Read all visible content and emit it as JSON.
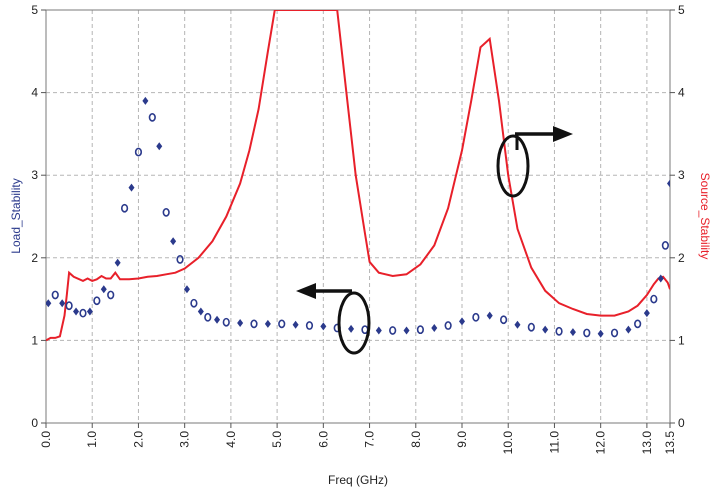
{
  "chart_data": {
    "type": "scatter",
    "xlabel": "Freq (GHz)",
    "ylabel_left": "Load_Stability",
    "ylabel_right": "Source_Stability",
    "xlim": [
      0,
      13.5
    ],
    "ylim_left": [
      0,
      5
    ],
    "ylim_right": [
      0,
      5
    ],
    "x_ticks": [
      "0.0",
      "1.0",
      "2.0",
      "3.0",
      "4.0",
      "5.0",
      "6.0",
      "7.0",
      "8.0",
      "9.0",
      "10.0",
      "11.0",
      "12.0",
      "13.0",
      "13.5"
    ],
    "y_ticks_left": [
      "0",
      "1",
      "2",
      "3",
      "4",
      "5"
    ],
    "y_ticks_right": [
      "0",
      "1",
      "2",
      "3",
      "4",
      "5"
    ],
    "grid": true,
    "colors": {
      "load": "#2b3a8c",
      "source": "#e8202a",
      "annotation": "#111111",
      "grid": "#b5b5b5"
    },
    "series": [
      {
        "name": "Load_Stability",
        "axis": "left",
        "style": "markers",
        "x": [
          0.05,
          0.2,
          0.35,
          0.5,
          0.65,
          0.8,
          0.95,
          1.1,
          1.25,
          1.4,
          1.55,
          1.7,
          1.85,
          2.0,
          2.15,
          2.3,
          2.45,
          2.6,
          2.75,
          2.9,
          3.05,
          3.2,
          3.35,
          3.5,
          3.7,
          3.9,
          4.2,
          4.5,
          4.8,
          5.1,
          5.4,
          5.7,
          6.0,
          6.3,
          6.6,
          6.9,
          7.2,
          7.5,
          7.8,
          8.1,
          8.4,
          8.7,
          9.0,
          9.3,
          9.6,
          9.9,
          10.2,
          10.5,
          10.8,
          11.1,
          11.4,
          11.7,
          12.0,
          12.3,
          12.6,
          12.8,
          13.0,
          13.15,
          13.3,
          13.4,
          13.5
        ],
        "y": [
          1.45,
          1.55,
          1.45,
          1.42,
          1.35,
          1.33,
          1.35,
          1.48,
          1.62,
          1.55,
          1.94,
          2.6,
          2.85,
          3.28,
          3.9,
          3.7,
          3.35,
          2.55,
          2.2,
          1.98,
          1.62,
          1.45,
          1.35,
          1.28,
          1.25,
          1.22,
          1.21,
          1.2,
          1.2,
          1.2,
          1.19,
          1.18,
          1.17,
          1.15,
          1.14,
          1.13,
          1.12,
          1.12,
          1.12,
          1.13,
          1.15,
          1.18,
          1.23,
          1.28,
          1.3,
          1.25,
          1.19,
          1.16,
          1.13,
          1.11,
          1.1,
          1.09,
          1.08,
          1.09,
          1.13,
          1.2,
          1.33,
          1.5,
          1.75,
          2.15,
          2.9
        ]
      },
      {
        "name": "Source_Stability",
        "axis": "right",
        "style": "line",
        "x": [
          0.0,
          0.1,
          0.2,
          0.3,
          0.4,
          0.45,
          0.5,
          0.6,
          0.8,
          0.9,
          1.0,
          1.1,
          1.2,
          1.3,
          1.4,
          1.5,
          1.6,
          1.8,
          2.0,
          2.2,
          2.4,
          2.6,
          2.8,
          3.0,
          3.3,
          3.6,
          3.9,
          4.2,
          4.4,
          4.6,
          4.8,
          4.95,
          5.2,
          5.6,
          6.0,
          6.3,
          6.5,
          6.7,
          6.9,
          7.0,
          7.2,
          7.5,
          7.8,
          8.1,
          8.4,
          8.7,
          9.0,
          9.2,
          9.4,
          9.6,
          9.8,
          10.0,
          10.2,
          10.5,
          10.8,
          11.1,
          11.4,
          11.7,
          12.0,
          12.3,
          12.6,
          12.8,
          13.0,
          13.15,
          13.25,
          13.35,
          13.45,
          13.5
        ],
        "y": [
          1.0,
          1.03,
          1.03,
          1.05,
          1.3,
          1.55,
          1.82,
          1.77,
          1.72,
          1.75,
          1.72,
          1.74,
          1.78,
          1.75,
          1.75,
          1.82,
          1.74,
          1.74,
          1.75,
          1.77,
          1.78,
          1.8,
          1.82,
          1.87,
          2.0,
          2.2,
          2.5,
          2.9,
          3.3,
          3.8,
          4.5,
          5.0,
          5.0,
          5.0,
          5.0,
          5.0,
          4.0,
          3.0,
          2.3,
          1.95,
          1.82,
          1.78,
          1.8,
          1.92,
          2.15,
          2.6,
          3.3,
          3.9,
          4.55,
          4.65,
          3.9,
          3.0,
          2.35,
          1.88,
          1.6,
          1.45,
          1.38,
          1.32,
          1.3,
          1.3,
          1.35,
          1.42,
          1.55,
          1.68,
          1.75,
          1.77,
          1.7,
          1.62
        ]
      }
    ]
  }
}
